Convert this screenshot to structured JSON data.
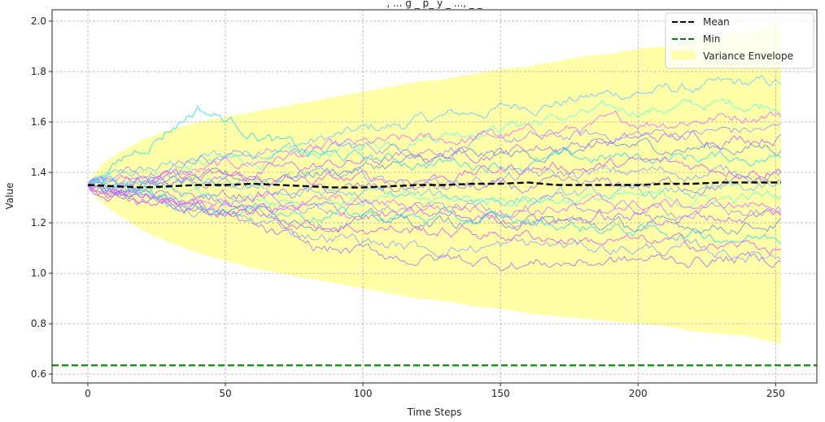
{
  "chart_data": {
    "type": "line",
    "title": ", ... g _ p_ y _ ...,  _ _ ",
    "xlabel": "Time Steps",
    "ylabel": "Value",
    "xlim": [
      -13,
      265
    ],
    "ylim": [
      0.565,
      2.045
    ],
    "x_ticks": [
      0,
      50,
      100,
      150,
      200,
      250
    ],
    "y_ticks": [
      0.6,
      0.8,
      1.0,
      1.2,
      1.4,
      1.6,
      1.8,
      2.0
    ],
    "grid": true,
    "legend_position": "top-right",
    "n_steps": 252,
    "start_value": 1.35,
    "mean": {
      "name": "Mean",
      "color": "#000000",
      "x": [
        0,
        10,
        20,
        30,
        40,
        50,
        60,
        70,
        80,
        90,
        100,
        110,
        120,
        130,
        140,
        150,
        160,
        170,
        180,
        190,
        200,
        210,
        220,
        230,
        240,
        252
      ],
      "y": [
        1.35,
        1.345,
        1.34,
        1.345,
        1.35,
        1.35,
        1.355,
        1.35,
        1.345,
        1.34,
        1.34,
        1.345,
        1.35,
        1.35,
        1.355,
        1.355,
        1.36,
        1.35,
        1.35,
        1.35,
        1.35,
        1.355,
        1.355,
        1.36,
        1.36,
        1.36
      ]
    },
    "min_line": {
      "name": "Min",
      "color": "#008000",
      "value": 0.635
    },
    "envelope": {
      "name": "Variance Envelope",
      "color": "#ffff99",
      "x": [
        0,
        5,
        10,
        20,
        30,
        40,
        50,
        60,
        70,
        80,
        90,
        100,
        110,
        120,
        130,
        140,
        150,
        160,
        170,
        180,
        190,
        200,
        210,
        220,
        230,
        240,
        252
      ],
      "upper": [
        1.36,
        1.43,
        1.47,
        1.53,
        1.57,
        1.6,
        1.62,
        1.64,
        1.66,
        1.68,
        1.7,
        1.72,
        1.74,
        1.76,
        1.77,
        1.79,
        1.81,
        1.82,
        1.84,
        1.86,
        1.87,
        1.89,
        1.9,
        1.92,
        1.94,
        1.96,
        1.99
      ],
      "lower": [
        1.34,
        1.28,
        1.24,
        1.17,
        1.12,
        1.08,
        1.05,
        1.02,
        1.0,
        0.98,
        0.96,
        0.94,
        0.92,
        0.9,
        0.89,
        0.87,
        0.86,
        0.84,
        0.83,
        0.82,
        0.81,
        0.8,
        0.79,
        0.77,
        0.76,
        0.75,
        0.72
      ]
    },
    "sample_paths": {
      "count": 20,
      "colors": [
        "#66ccff",
        "#66ffdd",
        "#ff66ff",
        "#9999ff",
        "#cc66ff",
        "#6699dd",
        "#33ddee",
        "#ee55ee",
        "#88aaff",
        "#aa77ee"
      ],
      "waypoints_x": [
        0,
        40,
        80,
        120,
        160,
        200,
        252
      ],
      "waypoints": [
        [
          1.35,
          1.45,
          1.52,
          1.6,
          1.67,
          1.72,
          1.75
        ],
        [
          1.35,
          1.43,
          1.46,
          1.55,
          1.6,
          1.65,
          1.68
        ],
        [
          1.35,
          1.4,
          1.48,
          1.52,
          1.55,
          1.6,
          1.64
        ],
        [
          1.35,
          1.47,
          1.49,
          1.5,
          1.53,
          1.55,
          1.57
        ],
        [
          1.35,
          1.38,
          1.42,
          1.46,
          1.5,
          1.53,
          1.55
        ],
        [
          1.35,
          1.36,
          1.4,
          1.44,
          1.47,
          1.5,
          1.5
        ],
        [
          1.35,
          1.66,
          1.47,
          1.44,
          1.44,
          1.46,
          1.46
        ],
        [
          1.35,
          1.38,
          1.36,
          1.38,
          1.42,
          1.43,
          1.42
        ],
        [
          1.35,
          1.36,
          1.38,
          1.36,
          1.38,
          1.4,
          1.4
        ],
        [
          1.35,
          1.3,
          1.32,
          1.34,
          1.33,
          1.35,
          1.36
        ],
        [
          1.35,
          1.34,
          1.32,
          1.3,
          1.3,
          1.31,
          1.33
        ],
        [
          1.35,
          1.32,
          1.3,
          1.28,
          1.3,
          1.29,
          1.3
        ],
        [
          1.35,
          1.3,
          1.28,
          1.27,
          1.26,
          1.27,
          1.27
        ],
        [
          1.35,
          1.28,
          1.26,
          1.25,
          1.27,
          1.25,
          1.24
        ],
        [
          1.35,
          1.27,
          1.25,
          1.22,
          1.22,
          1.22,
          1.23
        ],
        [
          1.35,
          1.28,
          1.22,
          1.2,
          1.21,
          1.18,
          1.2
        ],
        [
          1.35,
          1.27,
          1.24,
          1.22,
          1.2,
          1.17,
          1.14
        ],
        [
          1.35,
          1.26,
          1.2,
          1.17,
          1.15,
          1.12,
          1.1
        ],
        [
          1.35,
          1.25,
          1.16,
          1.1,
          1.11,
          1.1,
          1.07
        ],
        [
          1.35,
          1.25,
          1.1,
          1.06,
          1.04,
          1.05,
          1.06
        ]
      ]
    }
  }
}
